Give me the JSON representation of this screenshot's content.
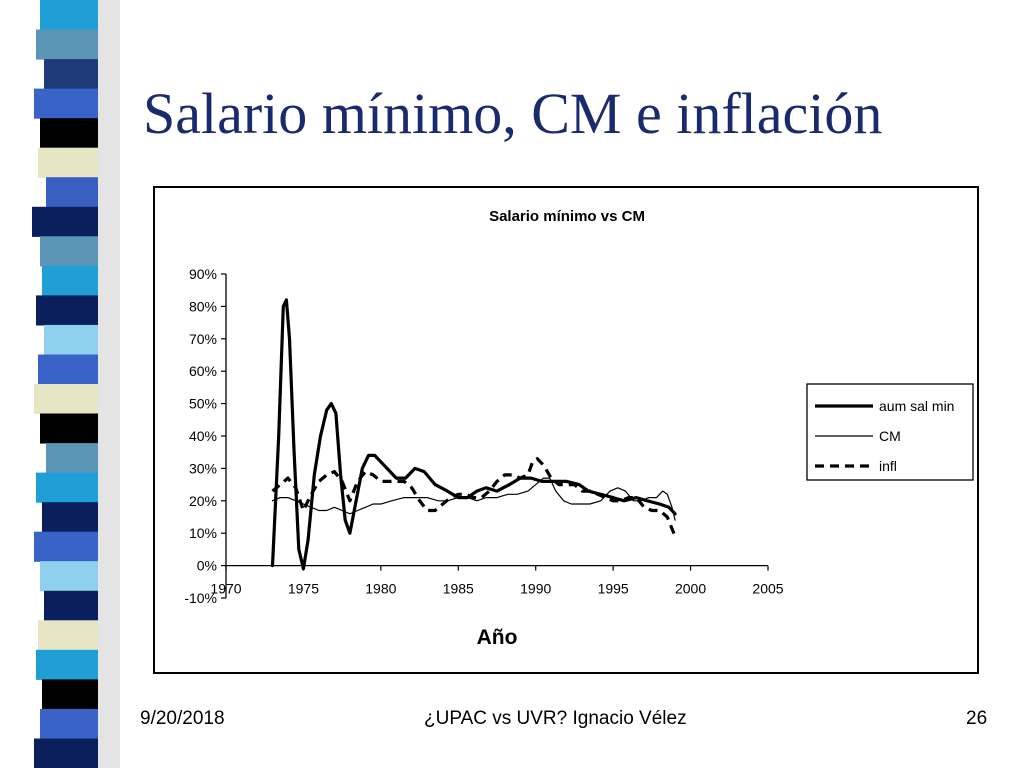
{
  "slide": {
    "title": "Salario mínimo, CM e inflación",
    "footer_date": "9/20/2018",
    "footer_center": "¿UPAC vs UVR? Ignacio Vélez",
    "page_number": "26"
  },
  "decor": {
    "stripe_colors": [
      "#1f9fd6",
      "#5b96b6",
      "#1e3a78",
      "#3a63c8",
      "#000000",
      "#e6e6c4",
      "#3a5fc0",
      "#0a1f5c",
      "#5b96b6",
      "#1f9fd6",
      "#0a1f5c",
      "#8fd0ef",
      "#3a63c8",
      "#e6e6c4",
      "#000000",
      "#5b96b6",
      "#1f9fd6",
      "#0a1f5c",
      "#3a63c8",
      "#8fd0ef",
      "#0a1f5c",
      "#e6e6c4",
      "#1f9fd6",
      "#000000",
      "#3a63c8",
      "#0a1f5c"
    ]
  },
  "chart_data": {
    "type": "line",
    "title": "Salario mínimo vs CM",
    "xlabel": "Año",
    "ylabel": "",
    "xlim": [
      1970,
      2005
    ],
    "ylim": [
      -0.1,
      0.9
    ],
    "x_ticks": [
      1970,
      1975,
      1980,
      1985,
      1990,
      1995,
      2000,
      2005
    ],
    "x_tick_labels": [
      "1970",
      "1975",
      "1980",
      "1985",
      "1990",
      "1995",
      "2000",
      "2005"
    ],
    "y_ticks": [
      -0.1,
      0,
      0.1,
      0.2,
      0.3,
      0.4,
      0.5,
      0.6,
      0.7,
      0.8,
      0.9
    ],
    "y_tick_labels": [
      "-10%",
      "0%",
      "10%",
      "20%",
      "30%",
      "40%",
      "50%",
      "60%",
      "70%",
      "80%",
      "90%"
    ],
    "legend_position": "right",
    "series": [
      {
        "name": "aum sal min",
        "style": "thick",
        "color": "#000000",
        "points": [
          [
            1973.0,
            0.0
          ],
          [
            1973.4,
            0.4
          ],
          [
            1973.7,
            0.8
          ],
          [
            1973.9,
            0.82
          ],
          [
            1974.1,
            0.7
          ],
          [
            1974.4,
            0.35
          ],
          [
            1974.7,
            0.05
          ],
          [
            1975.0,
            -0.01
          ],
          [
            1975.3,
            0.08
          ],
          [
            1975.7,
            0.28
          ],
          [
            1976.1,
            0.4
          ],
          [
            1976.5,
            0.48
          ],
          [
            1976.8,
            0.5
          ],
          [
            1977.1,
            0.47
          ],
          [
            1977.4,
            0.28
          ],
          [
            1977.7,
            0.14
          ],
          [
            1978.0,
            0.1
          ],
          [
            1978.4,
            0.2
          ],
          [
            1978.8,
            0.3
          ],
          [
            1979.2,
            0.34
          ],
          [
            1979.6,
            0.34
          ],
          [
            1980.2,
            0.31
          ],
          [
            1981.0,
            0.27
          ],
          [
            1981.6,
            0.27
          ],
          [
            1982.2,
            0.3
          ],
          [
            1982.8,
            0.29
          ],
          [
            1983.5,
            0.25
          ],
          [
            1984.3,
            0.23
          ],
          [
            1985.0,
            0.21
          ],
          [
            1985.6,
            0.21
          ],
          [
            1986.2,
            0.23
          ],
          [
            1986.8,
            0.24
          ],
          [
            1987.5,
            0.23
          ],
          [
            1988.3,
            0.25
          ],
          [
            1989.0,
            0.27
          ],
          [
            1989.7,
            0.27
          ],
          [
            1990.4,
            0.26
          ],
          [
            1991.2,
            0.26
          ],
          [
            1992.0,
            0.26
          ],
          [
            1992.8,
            0.25
          ],
          [
            1993.4,
            0.23
          ],
          [
            1994.2,
            0.22
          ],
          [
            1995.0,
            0.21
          ],
          [
            1995.7,
            0.2
          ],
          [
            1996.5,
            0.21
          ],
          [
            1997.2,
            0.2
          ],
          [
            1998.0,
            0.19
          ],
          [
            1998.6,
            0.18
          ],
          [
            1999.0,
            0.16
          ]
        ]
      },
      {
        "name": "CM",
        "style": "thin",
        "color": "#000000",
        "points": [
          [
            1973.0,
            0.2
          ],
          [
            1973.5,
            0.21
          ],
          [
            1974.0,
            0.21
          ],
          [
            1974.5,
            0.2
          ],
          [
            1975.0,
            0.19
          ],
          [
            1975.5,
            0.18
          ],
          [
            1976.0,
            0.17
          ],
          [
            1976.5,
            0.17
          ],
          [
            1977.0,
            0.18
          ],
          [
            1977.5,
            0.17
          ],
          [
            1978.0,
            0.16
          ],
          [
            1978.5,
            0.17
          ],
          [
            1979.0,
            0.18
          ],
          [
            1979.5,
            0.19
          ],
          [
            1980.0,
            0.19
          ],
          [
            1980.7,
            0.2
          ],
          [
            1981.5,
            0.21
          ],
          [
            1982.3,
            0.21
          ],
          [
            1983.0,
            0.21
          ],
          [
            1983.7,
            0.2
          ],
          [
            1984.3,
            0.2
          ],
          [
            1985.0,
            0.21
          ],
          [
            1985.6,
            0.21
          ],
          [
            1986.2,
            0.2
          ],
          [
            1986.8,
            0.21
          ],
          [
            1987.5,
            0.21
          ],
          [
            1988.2,
            0.22
          ],
          [
            1988.8,
            0.22
          ],
          [
            1989.5,
            0.23
          ],
          [
            1990.0,
            0.25
          ],
          [
            1990.5,
            0.27
          ],
          [
            1990.9,
            0.27
          ],
          [
            1991.3,
            0.23
          ],
          [
            1991.8,
            0.2
          ],
          [
            1992.3,
            0.19
          ],
          [
            1992.8,
            0.19
          ],
          [
            1993.5,
            0.19
          ],
          [
            1994.2,
            0.2
          ],
          [
            1994.8,
            0.23
          ],
          [
            1995.3,
            0.24
          ],
          [
            1995.8,
            0.23
          ],
          [
            1996.3,
            0.2
          ],
          [
            1996.8,
            0.2
          ],
          [
            1997.3,
            0.21
          ],
          [
            1997.8,
            0.21
          ],
          [
            1998.2,
            0.23
          ],
          [
            1998.5,
            0.22
          ],
          [
            1998.8,
            0.18
          ],
          [
            1999.0,
            0.14
          ]
        ]
      },
      {
        "name": "infl",
        "style": "dashed",
        "color": "#000000",
        "points": [
          [
            1973.0,
            0.23
          ],
          [
            1973.5,
            0.25
          ],
          [
            1974.0,
            0.27
          ],
          [
            1974.5,
            0.24
          ],
          [
            1975.0,
            0.17
          ],
          [
            1975.5,
            0.22
          ],
          [
            1976.0,
            0.26
          ],
          [
            1976.5,
            0.28
          ],
          [
            1977.0,
            0.29
          ],
          [
            1977.5,
            0.26
          ],
          [
            1978.0,
            0.2
          ],
          [
            1978.5,
            0.26
          ],
          [
            1979.0,
            0.29
          ],
          [
            1979.5,
            0.28
          ],
          [
            1980.0,
            0.26
          ],
          [
            1980.5,
            0.26
          ],
          [
            1981.0,
            0.26
          ],
          [
            1981.5,
            0.26
          ],
          [
            1982.0,
            0.24
          ],
          [
            1982.5,
            0.2
          ],
          [
            1983.0,
            0.17
          ],
          [
            1983.5,
            0.17
          ],
          [
            1984.0,
            0.19
          ],
          [
            1984.5,
            0.21
          ],
          [
            1985.0,
            0.22
          ],
          [
            1985.5,
            0.22
          ],
          [
            1986.0,
            0.21
          ],
          [
            1986.5,
            0.21
          ],
          [
            1987.0,
            0.23
          ],
          [
            1987.5,
            0.26
          ],
          [
            1988.0,
            0.28
          ],
          [
            1988.5,
            0.28
          ],
          [
            1989.0,
            0.27
          ],
          [
            1989.5,
            0.28
          ],
          [
            1989.8,
            0.32
          ],
          [
            1990.1,
            0.33
          ],
          [
            1990.5,
            0.31
          ],
          [
            1991.0,
            0.27
          ],
          [
            1991.5,
            0.25
          ],
          [
            1992.0,
            0.25
          ],
          [
            1992.5,
            0.25
          ],
          [
            1993.0,
            0.23
          ],
          [
            1993.5,
            0.23
          ],
          [
            1994.0,
            0.22
          ],
          [
            1994.5,
            0.21
          ],
          [
            1995.0,
            0.2
          ],
          [
            1995.5,
            0.2
          ],
          [
            1996.0,
            0.21
          ],
          [
            1996.5,
            0.21
          ],
          [
            1997.0,
            0.18
          ],
          [
            1997.5,
            0.17
          ],
          [
            1998.0,
            0.17
          ],
          [
            1998.5,
            0.15
          ],
          [
            1999.0,
            0.09
          ]
        ]
      }
    ]
  }
}
